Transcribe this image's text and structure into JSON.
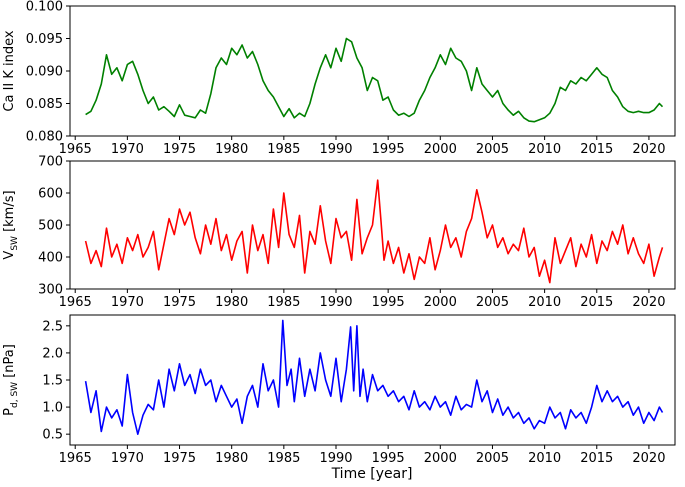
{
  "chart_data": [
    {
      "type": "line",
      "ylabel": "Ca II K index",
      "ylabel_sub": "",
      "ylabel_suffix": "",
      "xlabel": "",
      "xlim": [
        1964.5,
        2022.5
      ],
      "ylim": [
        0.08,
        0.1
      ],
      "yticks": [
        "0.080",
        "0.085",
        "0.090",
        "0.095",
        "0.100"
      ],
      "xticks": [
        "1965",
        "1970",
        "1975",
        "1980",
        "1985",
        "1990",
        "1995",
        "2000",
        "2005",
        "2010",
        "2015",
        "2020"
      ],
      "color": "#008000",
      "series": [
        {
          "x": [
            1966.0,
            1966.5,
            1967.0,
            1967.5,
            1968.0,
            1968.5,
            1969.0,
            1969.5,
            1970.0,
            1970.5,
            1971.0,
            1971.5,
            1972.0,
            1972.5,
            1973.0,
            1973.5,
            1974.0,
            1974.5,
            1975.0,
            1975.5,
            1976.0,
            1976.5,
            1977.0,
            1977.5,
            1978.0,
            1978.5,
            1979.0,
            1979.5,
            1980.0,
            1980.5,
            1981.0,
            1981.5,
            1982.0,
            1982.5,
            1983.0,
            1983.5,
            1984.0,
            1984.5,
            1985.0,
            1985.5,
            1986.0,
            1986.5,
            1987.0,
            1987.5,
            1988.0,
            1988.5,
            1989.0,
            1989.5,
            1990.0,
            1990.5,
            1991.0,
            1991.5,
            1992.0,
            1992.5,
            1993.0,
            1993.5,
            1994.0,
            1994.5,
            1995.0,
            1995.5,
            1996.0,
            1996.5,
            1997.0,
            1997.5,
            1998.0,
            1998.5,
            1999.0,
            1999.5,
            2000.0,
            2000.5,
            2001.0,
            2001.5,
            2002.0,
            2002.5,
            2003.0,
            2003.5,
            2004.0,
            2004.5,
            2005.0,
            2005.5,
            2006.0,
            2006.5,
            2007.0,
            2007.5,
            2008.0,
            2008.5,
            2009.0,
            2009.5,
            2010.0,
            2010.5,
            2011.0,
            2011.5,
            2012.0,
            2012.5,
            2013.0,
            2013.5,
            2014.0,
            2014.5,
            2015.0,
            2015.5,
            2016.0,
            2016.5,
            2017.0,
            2017.5,
            2018.0,
            2018.5,
            2019.0,
            2019.5,
            2020.0,
            2020.5,
            2021.0,
            2021.3
          ],
          "y": [
            0.0833,
            0.0838,
            0.0855,
            0.088,
            0.0925,
            0.0895,
            0.0905,
            0.0885,
            0.091,
            0.0915,
            0.0895,
            0.087,
            0.085,
            0.086,
            0.084,
            0.0845,
            0.0838,
            0.083,
            0.0848,
            0.0832,
            0.083,
            0.0828,
            0.084,
            0.0835,
            0.0865,
            0.0905,
            0.092,
            0.091,
            0.0935,
            0.0925,
            0.094,
            0.092,
            0.093,
            0.091,
            0.0885,
            0.087,
            0.086,
            0.0845,
            0.083,
            0.0842,
            0.0828,
            0.0835,
            0.083,
            0.085,
            0.088,
            0.0905,
            0.0925,
            0.0905,
            0.0935,
            0.0915,
            0.095,
            0.0945,
            0.092,
            0.0905,
            0.087,
            0.089,
            0.0885,
            0.0855,
            0.086,
            0.084,
            0.0832,
            0.0835,
            0.083,
            0.0835,
            0.0855,
            0.087,
            0.089,
            0.0905,
            0.0925,
            0.091,
            0.0935,
            0.092,
            0.0915,
            0.09,
            0.087,
            0.0905,
            0.088,
            0.087,
            0.086,
            0.087,
            0.085,
            0.084,
            0.0832,
            0.0838,
            0.0828,
            0.0823,
            0.0822,
            0.0825,
            0.0828,
            0.0835,
            0.085,
            0.0875,
            0.087,
            0.0885,
            0.088,
            0.089,
            0.0885,
            0.0895,
            0.0905,
            0.0895,
            0.089,
            0.087,
            0.086,
            0.0845,
            0.0838,
            0.0836,
            0.0838,
            0.0836,
            0.0836,
            0.084,
            0.085,
            0.0845
          ]
        }
      ]
    },
    {
      "type": "line",
      "ylabel": "V",
      "ylabel_sub": "SW",
      "ylabel_suffix": " [km/s]",
      "xlabel": "",
      "xlim": [
        1964.5,
        2022.5
      ],
      "ylim": [
        300,
        700
      ],
      "yticks": [
        "300",
        "400",
        "500",
        "600",
        "700"
      ],
      "xticks": [
        "1965",
        "1970",
        "1975",
        "1980",
        "1985",
        "1990",
        "1995",
        "2000",
        "2005",
        "2010",
        "2015",
        "2020"
      ],
      "color": "#ff0000",
      "series": [
        {
          "x": [
            1966.0,
            1966.5,
            1967.0,
            1967.5,
            1968.0,
            1968.5,
            1969.0,
            1969.5,
            1970.0,
            1970.5,
            1971.0,
            1971.5,
            1972.0,
            1972.5,
            1973.0,
            1973.5,
            1974.0,
            1974.5,
            1975.0,
            1975.5,
            1976.0,
            1976.5,
            1977.0,
            1977.5,
            1978.0,
            1978.5,
            1979.0,
            1979.5,
            1980.0,
            1980.5,
            1981.0,
            1981.5,
            1982.0,
            1982.5,
            1983.0,
            1983.5,
            1984.0,
            1984.5,
            1985.0,
            1985.5,
            1986.0,
            1986.5,
            1987.0,
            1987.5,
            1988.0,
            1988.5,
            1989.0,
            1989.5,
            1990.0,
            1990.5,
            1991.0,
            1991.5,
            1992.0,
            1992.5,
            1993.0,
            1993.5,
            1994.0,
            1994.3,
            1994.6,
            1995.0,
            1995.5,
            1996.0,
            1996.5,
            1997.0,
            1997.5,
            1998.0,
            1998.5,
            1999.0,
            1999.5,
            2000.0,
            2000.5,
            2001.0,
            2001.5,
            2002.0,
            2002.5,
            2003.0,
            2003.5,
            2004.0,
            2004.5,
            2005.0,
            2005.5,
            2006.0,
            2006.5,
            2007.0,
            2007.5,
            2008.0,
            2008.5,
            2009.0,
            2009.5,
            2010.0,
            2010.5,
            2011.0,
            2011.5,
            2012.0,
            2012.5,
            2013.0,
            2013.5,
            2014.0,
            2014.5,
            2015.0,
            2015.5,
            2016.0,
            2016.5,
            2017.0,
            2017.5,
            2018.0,
            2018.5,
            2019.0,
            2019.5,
            2020.0,
            2020.5,
            2021.0,
            2021.3
          ],
          "y": [
            450,
            380,
            420,
            370,
            490,
            400,
            440,
            380,
            460,
            420,
            470,
            400,
            430,
            480,
            360,
            440,
            520,
            470,
            550,
            500,
            540,
            460,
            410,
            500,
            440,
            520,
            420,
            470,
            390,
            450,
            480,
            350,
            500,
            420,
            470,
            380,
            550,
            430,
            600,
            470,
            430,
            530,
            350,
            480,
            440,
            560,
            450,
            380,
            520,
            460,
            480,
            390,
            580,
            410,
            460,
            500,
            640,
            520,
            390,
            450,
            380,
            430,
            350,
            410,
            330,
            400,
            380,
            460,
            360,
            420,
            500,
            430,
            460,
            400,
            480,
            520,
            610,
            540,
            460,
            500,
            430,
            460,
            410,
            440,
            420,
            490,
            400,
            430,
            340,
            390,
            320,
            460,
            380,
            420,
            460,
            370,
            440,
            400,
            470,
            380,
            450,
            420,
            480,
            440,
            500,
            410,
            460,
            410,
            380,
            440,
            340,
            400,
            430
          ]
        }
      ]
    },
    {
      "type": "line",
      "ylabel": "P",
      "ylabel_sub": "d, SW",
      "ylabel_suffix": " [nPa]",
      "xlabel": "Time [year]",
      "xlim": [
        1964.5,
        2022.5
      ],
      "ylim": [
        0.3,
        2.7
      ],
      "yticks": [
        "0.5",
        "1.0",
        "1.5",
        "2.0",
        "2.5"
      ],
      "ytick_values": [
        0.5,
        1.0,
        1.5,
        2.0,
        2.5
      ],
      "xticks": [
        "1965",
        "1970",
        "1975",
        "1980",
        "1985",
        "1990",
        "1995",
        "2000",
        "2005",
        "2010",
        "2015",
        "2020"
      ],
      "color": "#0000ff",
      "series": [
        {
          "x": [
            1966.0,
            1966.5,
            1967.0,
            1967.5,
            1968.0,
            1968.5,
            1969.0,
            1969.5,
            1970.0,
            1970.5,
            1971.0,
            1971.5,
            1972.0,
            1972.5,
            1973.0,
            1973.5,
            1974.0,
            1974.5,
            1975.0,
            1975.5,
            1976.0,
            1976.5,
            1977.0,
            1977.5,
            1978.0,
            1978.5,
            1979.0,
            1979.5,
            1980.0,
            1980.5,
            1981.0,
            1981.5,
            1982.0,
            1982.5,
            1983.0,
            1983.5,
            1984.0,
            1984.5,
            1984.9,
            1985.3,
            1985.7,
            1986.0,
            1986.5,
            1987.0,
            1987.5,
            1988.0,
            1988.5,
            1989.0,
            1989.5,
            1990.0,
            1990.5,
            1991.0,
            1991.4,
            1991.7,
            1992.0,
            1992.3,
            1992.6,
            1993.0,
            1993.5,
            1994.0,
            1994.5,
            1995.0,
            1995.5,
            1996.0,
            1996.5,
            1997.0,
            1997.5,
            1998.0,
            1998.5,
            1999.0,
            1999.5,
            2000.0,
            2000.5,
            2001.0,
            2001.5,
            2002.0,
            2002.5,
            2003.0,
            2003.5,
            2004.0,
            2004.5,
            2005.0,
            2005.5,
            2006.0,
            2006.5,
            2007.0,
            2007.5,
            2008.0,
            2008.5,
            2009.0,
            2009.5,
            2010.0,
            2010.5,
            2011.0,
            2011.5,
            2012.0,
            2012.5,
            2013.0,
            2013.5,
            2014.0,
            2014.5,
            2015.0,
            2015.5,
            2016.0,
            2016.5,
            2017.0,
            2017.5,
            2018.0,
            2018.5,
            2019.0,
            2019.5,
            2020.0,
            2020.5,
            2021.0,
            2021.3
          ],
          "y": [
            1.48,
            0.9,
            1.3,
            0.55,
            1.0,
            0.8,
            0.95,
            0.65,
            1.6,
            0.9,
            0.5,
            0.85,
            1.05,
            0.95,
            1.5,
            1.0,
            1.7,
            1.3,
            1.8,
            1.4,
            1.6,
            1.25,
            1.7,
            1.4,
            1.5,
            1.1,
            1.4,
            1.2,
            1.0,
            1.15,
            0.7,
            1.2,
            1.4,
            1.0,
            1.8,
            1.3,
            1.5,
            1.0,
            2.6,
            1.4,
            1.7,
            1.1,
            1.9,
            1.2,
            1.7,
            1.3,
            2.0,
            1.5,
            1.2,
            1.9,
            1.1,
            1.7,
            2.48,
            1.3,
            2.5,
            1.2,
            1.7,
            1.1,
            1.6,
            1.3,
            1.4,
            1.2,
            1.3,
            1.1,
            1.2,
            0.95,
            1.3,
            1.0,
            1.1,
            0.95,
            1.2,
            1.0,
            1.1,
            0.85,
            1.2,
            0.95,
            1.05,
            1.0,
            1.5,
            1.1,
            1.3,
            0.9,
            1.15,
            0.85,
            1.0,
            0.8,
            0.9,
            0.7,
            0.8,
            0.6,
            0.75,
            0.7,
            1.0,
            0.8,
            0.9,
            0.6,
            0.95,
            0.8,
            0.9,
            0.7,
            1.0,
            1.4,
            1.1,
            1.3,
            1.1,
            1.2,
            1.0,
            1.1,
            0.85,
            1.0,
            0.7,
            0.9,
            0.75,
            1.0,
            0.9
          ]
        }
      ]
    }
  ]
}
